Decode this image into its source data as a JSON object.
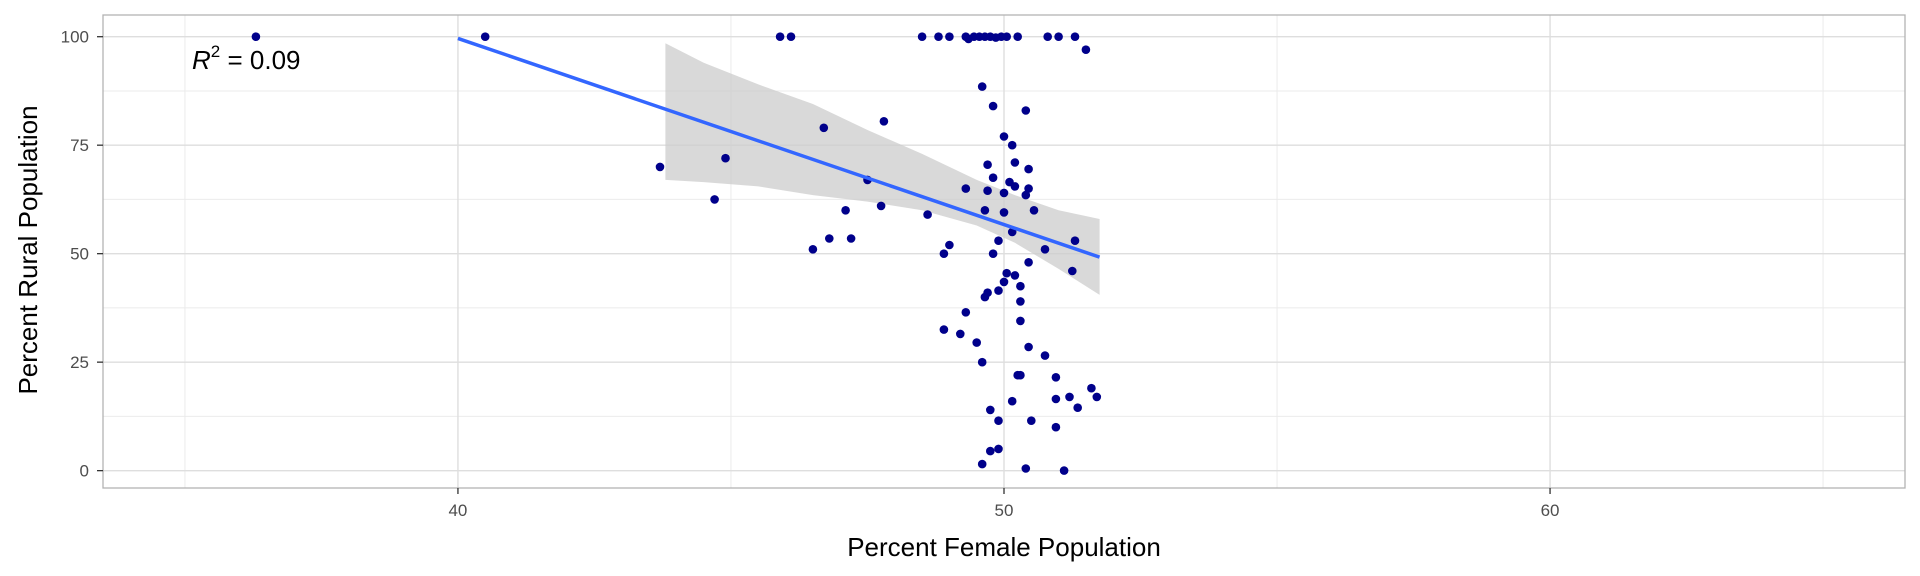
{
  "chart_data": {
    "type": "scatter",
    "xlabel": "Percent Female Population",
    "ylabel": "Percent Rural Population",
    "xlim": [
      33.5,
      66.5
    ],
    "ylim": [
      -4,
      105
    ],
    "x_ticks": [
      40,
      50,
      60
    ],
    "y_ticks": [
      0,
      25,
      50,
      75,
      100
    ],
    "x_minor_ticks": [
      35,
      45,
      55,
      65
    ],
    "y_minor_ticks": [
      12.5,
      37.5,
      62.5,
      87.5
    ],
    "grid": true,
    "legend": "none",
    "annotation": {
      "var": "R",
      "sup": "2",
      "rest": " = 0.09"
    },
    "point_color": "#00008b",
    "fit_color": "#3366ff",
    "ribbon_color": "#cccccc",
    "points": [
      [
        36.3,
        100
      ],
      [
        40.5,
        100
      ],
      [
        45.9,
        100
      ],
      [
        46.1,
        100
      ],
      [
        48.5,
        100
      ],
      [
        48.8,
        100
      ],
      [
        49.0,
        100
      ],
      [
        49.3,
        100
      ],
      [
        49.35,
        99.5
      ],
      [
        49.45,
        100
      ],
      [
        49.55,
        100
      ],
      [
        49.65,
        100
      ],
      [
        49.75,
        100
      ],
      [
        49.85,
        99.8
      ],
      [
        49.95,
        100
      ],
      [
        50.05,
        100
      ],
      [
        50.25,
        100
      ],
      [
        50.8,
        100
      ],
      [
        51.0,
        100
      ],
      [
        51.3,
        100
      ],
      [
        51.5,
        97
      ],
      [
        49.6,
        88.5
      ],
      [
        49.8,
        84
      ],
      [
        50.4,
        83
      ],
      [
        47.8,
        80.5
      ],
      [
        46.7,
        79
      ],
      [
        50.0,
        77
      ],
      [
        50.15,
        75
      ],
      [
        44.9,
        72
      ],
      [
        43.7,
        70
      ],
      [
        49.7,
        70.5
      ],
      [
        50.2,
        71
      ],
      [
        50.45,
        69.5
      ],
      [
        49.8,
        67.5
      ],
      [
        47.5,
        67
      ],
      [
        50.1,
        66.5
      ],
      [
        50.2,
        65.5
      ],
      [
        50.45,
        65
      ],
      [
        49.3,
        65
      ],
      [
        49.7,
        64.5
      ],
      [
        50.0,
        64
      ],
      [
        50.4,
        63.5
      ],
      [
        44.7,
        62.5
      ],
      [
        47.75,
        61
      ],
      [
        47.1,
        60
      ],
      [
        49.65,
        60
      ],
      [
        50.0,
        59.5
      ],
      [
        50.55,
        60
      ],
      [
        48.6,
        59
      ],
      [
        50.15,
        55
      ],
      [
        46.8,
        53.5
      ],
      [
        47.2,
        53.5
      ],
      [
        49.9,
        53
      ],
      [
        51.3,
        53
      ],
      [
        50.75,
        51
      ],
      [
        46.5,
        51
      ],
      [
        49.0,
        52
      ],
      [
        48.9,
        50
      ],
      [
        49.8,
        50
      ],
      [
        50.45,
        48
      ],
      [
        51.25,
        46
      ],
      [
        50.05,
        45.5
      ],
      [
        50.2,
        45
      ],
      [
        50.0,
        43.5
      ],
      [
        50.3,
        42.5
      ],
      [
        49.9,
        41.5
      ],
      [
        49.7,
        41
      ],
      [
        49.65,
        40
      ],
      [
        50.3,
        39
      ],
      [
        49.3,
        36.5
      ],
      [
        50.3,
        34.5
      ],
      [
        48.9,
        32.5
      ],
      [
        49.2,
        31.5
      ],
      [
        49.5,
        29.5
      ],
      [
        50.45,
        28.5
      ],
      [
        50.75,
        26.5
      ],
      [
        49.6,
        25
      ],
      [
        50.25,
        22
      ],
      [
        50.3,
        22
      ],
      [
        50.95,
        21.5
      ],
      [
        51.6,
        19
      ],
      [
        51.7,
        17
      ],
      [
        51.2,
        17
      ],
      [
        50.95,
        16.5
      ],
      [
        50.15,
        16
      ],
      [
        51.35,
        14.5
      ],
      [
        49.75,
        14
      ],
      [
        49.9,
        11.5
      ],
      [
        50.5,
        11.5
      ],
      [
        50.95,
        10
      ],
      [
        49.9,
        5
      ],
      [
        49.75,
        4.5
      ],
      [
        49.6,
        1.5
      ],
      [
        50.4,
        0.5
      ],
      [
        51.1,
        0
      ]
    ],
    "fit": {
      "x_start": 40.0,
      "y_start": 99.6,
      "x_end": 51.75,
      "y_end": 49.2
    },
    "ribbon": [
      [
        43.8,
        98.5,
        67.0
      ],
      [
        44.5,
        94.0,
        66.5
      ],
      [
        45.5,
        89.0,
        65.5
      ],
      [
        46.5,
        84.5,
        63.5
      ],
      [
        47.5,
        78.5,
        62.0
      ],
      [
        48.5,
        73.0,
        60.0
      ],
      [
        49.5,
        67.0,
        56.5
      ],
      [
        50.2,
        63.5,
        52.5
      ],
      [
        51.0,
        60.0,
        46.5
      ],
      [
        51.75,
        58.0,
        40.5
      ]
    ]
  }
}
